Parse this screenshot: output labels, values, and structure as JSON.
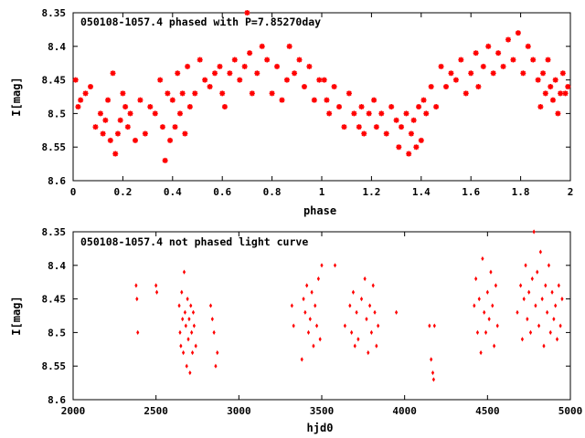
{
  "chart_data": [
    {
      "type": "scatter",
      "title": "050108-1057.4 phased with P=7.85270day",
      "xlabel": "phase",
      "ylabel": "I[mag]",
      "xlim": [
        0,
        2
      ],
      "ylim": [
        8.6,
        8.35
      ],
      "y_inverted": true,
      "xticks": [
        "0",
        "0.2",
        "0.4",
        "0.6",
        "0.8",
        "1",
        "1.2",
        "1.4",
        "1.6",
        "1.8",
        "2"
      ],
      "yticks": [
        "8.35",
        "8.4",
        "8.45",
        "8.5",
        "8.55",
        "8.6"
      ],
      "marker_color": "#ff0000",
      "points": [
        [
          0.01,
          8.45
        ],
        [
          0.02,
          8.49
        ],
        [
          0.03,
          8.48
        ],
        [
          0.05,
          8.47
        ],
        [
          0.07,
          8.46
        ],
        [
          0.09,
          8.52
        ],
        [
          0.11,
          8.5
        ],
        [
          0.12,
          8.53
        ],
        [
          0.13,
          8.51
        ],
        [
          0.14,
          8.48
        ],
        [
          0.15,
          8.54
        ],
        [
          0.16,
          8.44
        ],
        [
          0.17,
          8.56
        ],
        [
          0.18,
          8.53
        ],
        [
          0.19,
          8.51
        ],
        [
          0.2,
          8.47
        ],
        [
          0.21,
          8.49
        ],
        [
          0.22,
          8.52
        ],
        [
          0.23,
          8.5
        ],
        [
          0.25,
          8.54
        ],
        [
          0.27,
          8.48
        ],
        [
          0.29,
          8.53
        ],
        [
          0.31,
          8.49
        ],
        [
          0.33,
          8.5
        ],
        [
          0.35,
          8.45
        ],
        [
          0.36,
          8.52
        ],
        [
          0.37,
          8.57
        ],
        [
          0.38,
          8.47
        ],
        [
          0.39,
          8.54
        ],
        [
          0.4,
          8.48
        ],
        [
          0.41,
          8.52
        ],
        [
          0.42,
          8.44
        ],
        [
          0.43,
          8.5
        ],
        [
          0.44,
          8.47
        ],
        [
          0.45,
          8.53
        ],
        [
          0.46,
          8.43
        ],
        [
          0.47,
          8.49
        ],
        [
          0.49,
          8.47
        ],
        [
          0.51,
          8.42
        ],
        [
          0.53,
          8.45
        ],
        [
          0.55,
          8.46
        ],
        [
          0.57,
          8.44
        ],
        [
          0.59,
          8.43
        ],
        [
          0.6,
          8.47
        ],
        [
          0.61,
          8.49
        ],
        [
          0.63,
          8.44
        ],
        [
          0.65,
          8.42
        ],
        [
          0.67,
          8.45
        ],
        [
          0.69,
          8.43
        ],
        [
          0.71,
          8.41
        ],
        [
          0.72,
          8.47
        ],
        [
          0.74,
          8.44
        ],
        [
          0.76,
          8.4
        ],
        [
          0.78,
          8.42
        ],
        [
          0.8,
          8.47
        ],
        [
          0.82,
          8.43
        ],
        [
          0.84,
          8.48
        ],
        [
          0.86,
          8.45
        ],
        [
          0.87,
          8.4
        ],
        [
          0.89,
          8.44
        ],
        [
          0.91,
          8.42
        ],
        [
          0.93,
          8.46
        ],
        [
          0.95,
          8.43
        ],
        [
          0.97,
          8.48
        ],
        [
          0.99,
          8.45
        ],
        [
          1.01,
          8.45
        ],
        [
          1.02,
          8.48
        ],
        [
          1.03,
          8.5
        ],
        [
          1.05,
          8.46
        ],
        [
          1.07,
          8.49
        ],
        [
          1.09,
          8.52
        ],
        [
          1.11,
          8.47
        ],
        [
          1.13,
          8.5
        ],
        [
          1.15,
          8.52
        ],
        [
          1.16,
          8.49
        ],
        [
          1.17,
          8.53
        ],
        [
          1.19,
          8.5
        ],
        [
          1.21,
          8.48
        ],
        [
          1.22,
          8.52
        ],
        [
          1.24,
          8.5
        ],
        [
          1.26,
          8.53
        ],
        [
          1.28,
          8.49
        ],
        [
          1.3,
          8.51
        ],
        [
          1.31,
          8.55
        ],
        [
          1.32,
          8.52
        ],
        [
          1.34,
          8.5
        ],
        [
          1.35,
          8.56
        ],
        [
          1.36,
          8.53
        ],
        [
          1.37,
          8.51
        ],
        [
          1.38,
          8.55
        ],
        [
          1.39,
          8.49
        ],
        [
          1.4,
          8.54
        ],
        [
          1.41,
          8.48
        ],
        [
          1.42,
          8.5
        ],
        [
          1.44,
          8.46
        ],
        [
          1.46,
          8.49
        ],
        [
          1.48,
          8.43
        ],
        [
          1.5,
          8.46
        ],
        [
          1.52,
          8.44
        ],
        [
          1.54,
          8.45
        ],
        [
          1.56,
          8.42
        ],
        [
          1.58,
          8.47
        ],
        [
          1.6,
          8.44
        ],
        [
          1.62,
          8.41
        ],
        [
          1.63,
          8.46
        ],
        [
          1.65,
          8.43
        ],
        [
          1.67,
          8.4
        ],
        [
          1.69,
          8.44
        ],
        [
          1.71,
          8.41
        ],
        [
          1.73,
          8.43
        ],
        [
          1.75,
          8.39
        ],
        [
          1.77,
          8.42
        ],
        [
          1.79,
          8.38
        ],
        [
          1.81,
          8.44
        ],
        [
          1.83,
          8.4
        ],
        [
          1.85,
          8.42
        ],
        [
          1.87,
          8.45
        ],
        [
          1.88,
          8.49
        ],
        [
          1.89,
          8.44
        ],
        [
          1.9,
          8.47
        ],
        [
          1.91,
          8.42
        ],
        [
          1.92,
          8.46
        ],
        [
          1.93,
          8.48
        ],
        [
          1.94,
          8.45
        ],
        [
          1.95,
          8.5
        ],
        [
          1.96,
          8.47
        ],
        [
          1.97,
          8.44
        ],
        [
          1.98,
          8.47
        ],
        [
          1.99,
          8.46
        ],
        [
          0.7,
          8.35
        ]
      ]
    },
    {
      "type": "scatter",
      "title": "050108-1057.4 not phased light curve",
      "xlabel": "hjd0",
      "ylabel": "I[mag]",
      "xlim": [
        2000,
        5000
      ],
      "ylim": [
        8.6,
        8.35
      ],
      "y_inverted": true,
      "xticks": [
        "2000",
        "2500",
        "3000",
        "3500",
        "4000",
        "4500",
        "5000"
      ],
      "yticks": [
        "8.35",
        "8.4",
        "8.45",
        "8.5",
        "8.55",
        "8.6"
      ],
      "marker_color": "#ff0000",
      "points": [
        [
          2380,
          8.43
        ],
        [
          2385,
          8.45
        ],
        [
          2390,
          8.5
        ],
        [
          2500,
          8.43
        ],
        [
          2505,
          8.44
        ],
        [
          2640,
          8.46
        ],
        [
          2645,
          8.5
        ],
        [
          2650,
          8.52
        ],
        [
          2655,
          8.44
        ],
        [
          2660,
          8.48
        ],
        [
          2665,
          8.53
        ],
        [
          2670,
          8.41
        ],
        [
          2675,
          8.47
        ],
        [
          2680,
          8.49
        ],
        [
          2685,
          8.55
        ],
        [
          2690,
          8.45
        ],
        [
          2695,
          8.51
        ],
        [
          2700,
          8.48
        ],
        [
          2705,
          8.56
        ],
        [
          2710,
          8.46
        ],
        [
          2715,
          8.5
        ],
        [
          2720,
          8.53
        ],
        [
          2725,
          8.47
        ],
        [
          2730,
          8.49
        ],
        [
          2740,
          8.52
        ],
        [
          2830,
          8.46
        ],
        [
          2840,
          8.48
        ],
        [
          2850,
          8.5
        ],
        [
          2860,
          8.55
        ],
        [
          2870,
          8.53
        ],
        [
          3320,
          8.46
        ],
        [
          3330,
          8.49
        ],
        [
          3380,
          8.54
        ],
        [
          3390,
          8.45
        ],
        [
          3400,
          8.47
        ],
        [
          3410,
          8.43
        ],
        [
          3420,
          8.5
        ],
        [
          3430,
          8.48
        ],
        [
          3440,
          8.44
        ],
        [
          3450,
          8.52
        ],
        [
          3460,
          8.46
        ],
        [
          3470,
          8.49
        ],
        [
          3480,
          8.42
        ],
        [
          3490,
          8.51
        ],
        [
          3500,
          8.4
        ],
        [
          3580,
          8.4
        ],
        [
          3640,
          8.49
        ],
        [
          3670,
          8.46
        ],
        [
          3680,
          8.5
        ],
        [
          3690,
          8.44
        ],
        [
          3700,
          8.52
        ],
        [
          3710,
          8.47
        ],
        [
          3720,
          8.51
        ],
        [
          3740,
          8.45
        ],
        [
          3760,
          8.42
        ],
        [
          3770,
          8.48
        ],
        [
          3780,
          8.53
        ],
        [
          3790,
          8.46
        ],
        [
          3800,
          8.5
        ],
        [
          3810,
          8.43
        ],
        [
          3820,
          8.47
        ],
        [
          3830,
          8.52
        ],
        [
          3840,
          8.49
        ],
        [
          3950,
          8.47
        ],
        [
          4150,
          8.49
        ],
        [
          4160,
          8.54
        ],
        [
          4170,
          8.56
        ],
        [
          4175,
          8.57
        ],
        [
          4180,
          8.49
        ],
        [
          4420,
          8.46
        ],
        [
          4430,
          8.42
        ],
        [
          4440,
          8.5
        ],
        [
          4450,
          8.45
        ],
        [
          4460,
          8.53
        ],
        [
          4470,
          8.39
        ],
        [
          4480,
          8.47
        ],
        [
          4490,
          8.5
        ],
        [
          4500,
          8.44
        ],
        [
          4510,
          8.48
        ],
        [
          4520,
          8.41
        ],
        [
          4530,
          8.46
        ],
        [
          4540,
          8.52
        ],
        [
          4550,
          8.43
        ],
        [
          4560,
          8.49
        ],
        [
          4680,
          8.47
        ],
        [
          4700,
          8.43
        ],
        [
          4710,
          8.51
        ],
        [
          4720,
          8.45
        ],
        [
          4730,
          8.4
        ],
        [
          4740,
          8.48
        ],
        [
          4750,
          8.44
        ],
        [
          4760,
          8.5
        ],
        [
          4770,
          8.42
        ],
        [
          4780,
          8.35
        ],
        [
          4790,
          8.46
        ],
        [
          4800,
          8.41
        ],
        [
          4810,
          8.49
        ],
        [
          4820,
          8.38
        ],
        [
          4830,
          8.45
        ],
        [
          4840,
          8.52
        ],
        [
          4850,
          8.43
        ],
        [
          4860,
          8.47
        ],
        [
          4870,
          8.4
        ],
        [
          4880,
          8.5
        ],
        [
          4890,
          8.44
        ],
        [
          4900,
          8.48
        ],
        [
          4910,
          8.46
        ],
        [
          4920,
          8.51
        ],
        [
          4930,
          8.43
        ],
        [
          4940,
          8.49
        ],
        [
          4950,
          8.45
        ]
      ]
    }
  ]
}
